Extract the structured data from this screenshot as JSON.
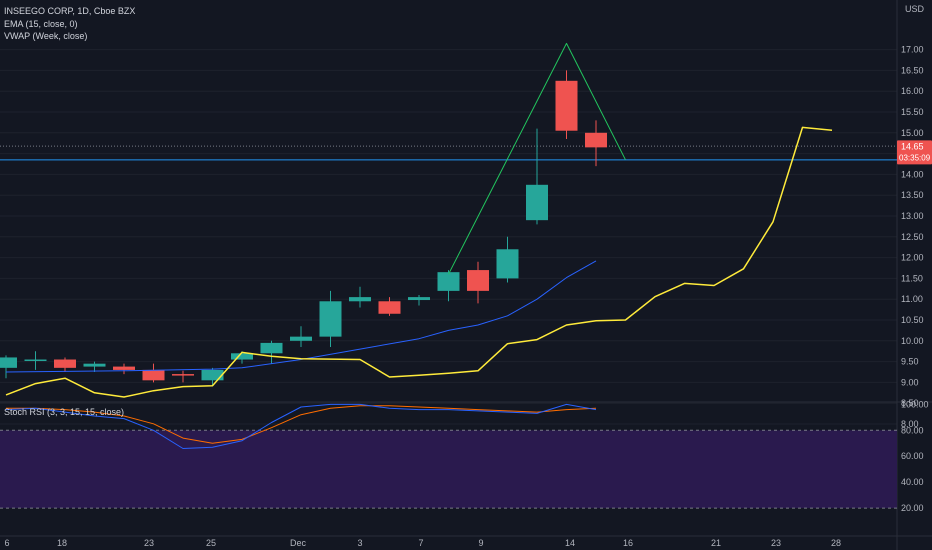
{
  "header": {
    "symbol_line": "INSEEGO CORP, 1D, Cboe BZX",
    "ema_label": "EMA (15, close, 0)",
    "vwap_label": "VWAP (Week, close)",
    "stoch_label": "Stoch RSI (3, 3, 15, 15, close)",
    "currency": "USD"
  },
  "price_badge": {
    "price": "14.65",
    "countdown": "03:35:09"
  },
  "colors": {
    "background": "#131722",
    "up": "#26a69a",
    "down": "#ef5350",
    "ema": "#2962ff",
    "vwap": "#ffeb3b",
    "pattern": "#22c55e",
    "hline": "#2196f3",
    "stoch_k": "#2962ff",
    "stoch_d": "#ff6d00",
    "stoch_band": "#2a1a4e"
  },
  "chart_data": [
    {
      "type": "candlestick",
      "title": "INSEEGO CORP, 1D, Cboe BZX",
      "ylim": [
        7.8,
        17.4
      ],
      "y_ticks": [
        "17.00",
        "16.50",
        "16.00",
        "15.50",
        "15.00",
        "14.50",
        "14.00",
        "13.50",
        "13.00",
        "12.50",
        "12.00",
        "11.50",
        "11.00",
        "10.50",
        "10.00",
        "9.50",
        "9.00",
        "8.50",
        "8.00"
      ],
      "x_ticks": [
        "6",
        "18",
        "23",
        "25",
        "Dec",
        "3",
        "7",
        "9",
        "14",
        "16",
        "21",
        "23",
        "28"
      ],
      "candles": [
        {
          "i": 0,
          "o": 9.35,
          "h": 9.65,
          "l": 9.1,
          "c": 9.6
        },
        {
          "i": 1,
          "o": 9.55,
          "h": 9.75,
          "l": 9.3,
          "c": 9.55
        },
        {
          "i": 2,
          "o": 9.55,
          "h": 9.6,
          "l": 9.25,
          "c": 9.35
        },
        {
          "i": 3,
          "o": 9.38,
          "h": 9.5,
          "l": 9.25,
          "c": 9.45
        },
        {
          "i": 4,
          "o": 9.38,
          "h": 9.45,
          "l": 9.2,
          "c": 9.3
        },
        {
          "i": 5,
          "o": 9.3,
          "h": 9.45,
          "l": 9.0,
          "c": 9.05
        },
        {
          "i": 6,
          "o": 9.2,
          "h": 9.28,
          "l": 9.0,
          "c": 9.18
        },
        {
          "i": 7,
          "o": 9.05,
          "h": 9.35,
          "l": 8.9,
          "c": 9.3
        },
        {
          "i": 8,
          "o": 9.55,
          "h": 9.75,
          "l": 9.45,
          "c": 9.7
        },
        {
          "i": 9,
          "o": 9.7,
          "h": 10.0,
          "l": 9.45,
          "c": 9.95
        },
        {
          "i": 10,
          "o": 10.0,
          "h": 10.35,
          "l": 9.85,
          "c": 10.1
        },
        {
          "i": 11,
          "o": 10.1,
          "h": 11.2,
          "l": 9.85,
          "c": 10.95
        },
        {
          "i": 12,
          "o": 10.95,
          "h": 11.3,
          "l": 10.8,
          "c": 11.05
        },
        {
          "i": 13,
          "o": 10.95,
          "h": 11.05,
          "l": 10.6,
          "c": 10.65
        },
        {
          "i": 14,
          "o": 10.98,
          "h": 11.1,
          "l": 10.85,
          "c": 11.05
        },
        {
          "i": 15,
          "o": 11.2,
          "h": 11.7,
          "l": 10.95,
          "c": 11.65
        },
        {
          "i": 16,
          "o": 11.7,
          "h": 11.9,
          "l": 10.9,
          "c": 11.2
        },
        {
          "i": 17,
          "o": 11.5,
          "h": 12.5,
          "l": 11.4,
          "c": 12.2
        },
        {
          "i": 18,
          "o": 12.9,
          "h": 15.1,
          "l": 12.8,
          "c": 13.75
        },
        {
          "i": 19,
          "o": 16.25,
          "h": 16.5,
          "l": 14.85,
          "c": 15.05
        },
        {
          "i": 20,
          "o": 15.0,
          "h": 15.3,
          "l": 14.2,
          "c": 14.65
        }
      ],
      "ema": [
        {
          "i": 0,
          "v": 9.25
        },
        {
          "i": 4,
          "v": 9.28
        },
        {
          "i": 7,
          "v": 9.32
        },
        {
          "i": 8,
          "v": 9.35
        },
        {
          "i": 10,
          "v": 9.55
        },
        {
          "i": 12,
          "v": 9.8
        },
        {
          "i": 14,
          "v": 10.05
        },
        {
          "i": 15,
          "v": 10.25
        },
        {
          "i": 16,
          "v": 10.38
        },
        {
          "i": 17,
          "v": 10.6
        },
        {
          "i": 18,
          "v": 11.0
        },
        {
          "i": 19,
          "v": 11.52
        },
        {
          "i": 20,
          "v": 11.92
        }
      ],
      "vwap": [
        {
          "i": 0,
          "v": 8.7
        },
        {
          "i": 1,
          "v": 8.97
        },
        {
          "i": 2,
          "v": 9.1
        },
        {
          "i": 3,
          "v": 8.75
        },
        {
          "i": 4,
          "v": 8.65
        },
        {
          "i": 5,
          "v": 8.8
        },
        {
          "i": 6,
          "v": 8.9
        },
        {
          "i": 7,
          "v": 8.92
        },
        {
          "i": 8,
          "v": 9.72
        },
        {
          "i": 9,
          "v": 9.63
        },
        {
          "i": 10,
          "v": 9.57
        },
        {
          "i": 11,
          "v": 9.56
        },
        {
          "i": 12,
          "v": 9.55
        },
        {
          "i": 13,
          "v": 9.13
        },
        {
          "i": 14,
          "v": 9.17
        },
        {
          "i": 15,
          "v": 9.22
        },
        {
          "i": 16,
          "v": 9.28
        },
        {
          "i": 17,
          "v": 9.93
        },
        {
          "i": 18,
          "v": 10.03
        },
        {
          "i": 19,
          "v": 10.38
        },
        {
          "i": 20,
          "v": 10.48
        },
        {
          "i": 21,
          "v": 10.5
        },
        {
          "i": 22,
          "v": 11.06
        },
        {
          "i": 23,
          "v": 11.38
        },
        {
          "i": 24,
          "v": 11.33
        },
        {
          "i": 25,
          "v": 11.73
        },
        {
          "i": 26,
          "v": 12.86
        },
        {
          "i": 27,
          "v": 15.13
        },
        {
          "i": 28,
          "v": 15.06
        }
      ],
      "pattern_line": [
        {
          "i": 15,
          "v": 11.6
        },
        {
          "i": 19,
          "v": 17.15
        },
        {
          "i": 21,
          "v": 14.35
        }
      ],
      "hlines": [
        {
          "v": 14.68,
          "style": "dotted",
          "color": "#787b86"
        },
        {
          "v": 14.35,
          "style": "solid",
          "color": "#2196f3"
        }
      ]
    },
    {
      "type": "line",
      "title": "Stoch RSI (3, 3, 15, 15, close)",
      "ylim": [
        13,
        104
      ],
      "y_ticks": [
        "100.00",
        "80.00",
        "60.00",
        "40.00",
        "20.00"
      ],
      "band": [
        20,
        80
      ],
      "series": [
        {
          "name": "K",
          "values": [
            {
              "i": 0,
              "v": 96
            },
            {
              "i": 1,
              "v": 97
            },
            {
              "i": 2,
              "v": 94
            },
            {
              "i": 3,
              "v": 91
            },
            {
              "i": 4,
              "v": 89
            },
            {
              "i": 5,
              "v": 80
            },
            {
              "i": 6,
              "v": 66
            },
            {
              "i": 7,
              "v": 67
            },
            {
              "i": 8,
              "v": 72
            },
            {
              "i": 9,
              "v": 86
            },
            {
              "i": 10,
              "v": 98
            },
            {
              "i": 11,
              "v": 100
            },
            {
              "i": 12,
              "v": 100
            },
            {
              "i": 13,
              "v": 97
            },
            {
              "i": 14,
              "v": 96
            },
            {
              "i": 15,
              "v": 96
            },
            {
              "i": 16,
              "v": 95
            },
            {
              "i": 17,
              "v": 94
            },
            {
              "i": 18,
              "v": 93
            },
            {
              "i": 19,
              "v": 100
            },
            {
              "i": 20,
              "v": 96
            }
          ]
        },
        {
          "name": "D",
          "values": [
            {
              "i": 0,
              "v": 97
            },
            {
              "i": 1,
              "v": 97
            },
            {
              "i": 2,
              "v": 96
            },
            {
              "i": 3,
              "v": 94
            },
            {
              "i": 4,
              "v": 91
            },
            {
              "i": 5,
              "v": 85
            },
            {
              "i": 6,
              "v": 74
            },
            {
              "i": 7,
              "v": 70
            },
            {
              "i": 8,
              "v": 73
            },
            {
              "i": 9,
              "v": 82
            },
            {
              "i": 10,
              "v": 92
            },
            {
              "i": 11,
              "v": 97
            },
            {
              "i": 12,
              "v": 99
            },
            {
              "i": 13,
              "v": 99
            },
            {
              "i": 14,
              "v": 98
            },
            {
              "i": 15,
              "v": 97
            },
            {
              "i": 16,
              "v": 96
            },
            {
              "i": 17,
              "v": 95
            },
            {
              "i": 18,
              "v": 94
            },
            {
              "i": 19,
              "v": 96
            },
            {
              "i": 20,
              "v": 97
            }
          ]
        }
      ]
    }
  ]
}
